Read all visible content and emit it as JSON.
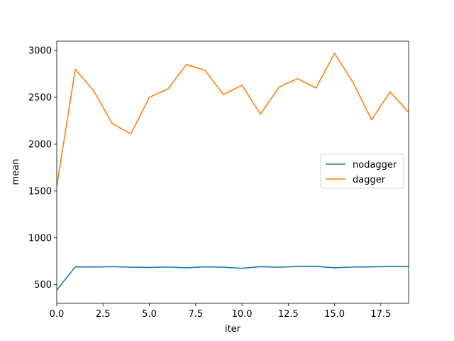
{
  "chart_data": {
    "type": "line",
    "title": "",
    "xlabel": "iter",
    "ylabel": "mean",
    "xlim": [
      0,
      19
    ],
    "ylim": [
      300,
      3100
    ],
    "xticks": [
      "0.0",
      "2.5",
      "5.0",
      "7.5",
      "10.0",
      "12.5",
      "15.0",
      "17.5"
    ],
    "yticks": [
      "500",
      "1000",
      "1500",
      "2000",
      "2500",
      "3000"
    ],
    "grid": false,
    "legend_position": "center-right",
    "x": [
      0,
      1,
      2,
      3,
      4,
      5,
      6,
      7,
      8,
      9,
      10,
      11,
      12,
      13,
      14,
      15,
      16,
      17,
      18,
      19
    ],
    "series": [
      {
        "name": "nodagger",
        "color": "#1f77b4",
        "values": [
          440,
          690,
          688,
          692,
          686,
          684,
          688,
          680,
          690,
          686,
          674,
          692,
          686,
          694,
          695,
          680,
          688,
          690,
          693,
          692
        ]
      },
      {
        "name": "dagger",
        "color": "#ff7f0e",
        "values": [
          1550,
          2800,
          2570,
          2220,
          2110,
          2500,
          2590,
          2850,
          2790,
          2530,
          2630,
          2320,
          2610,
          2700,
          2600,
          2970,
          2660,
          2260,
          2560,
          2340
        ]
      }
    ]
  }
}
